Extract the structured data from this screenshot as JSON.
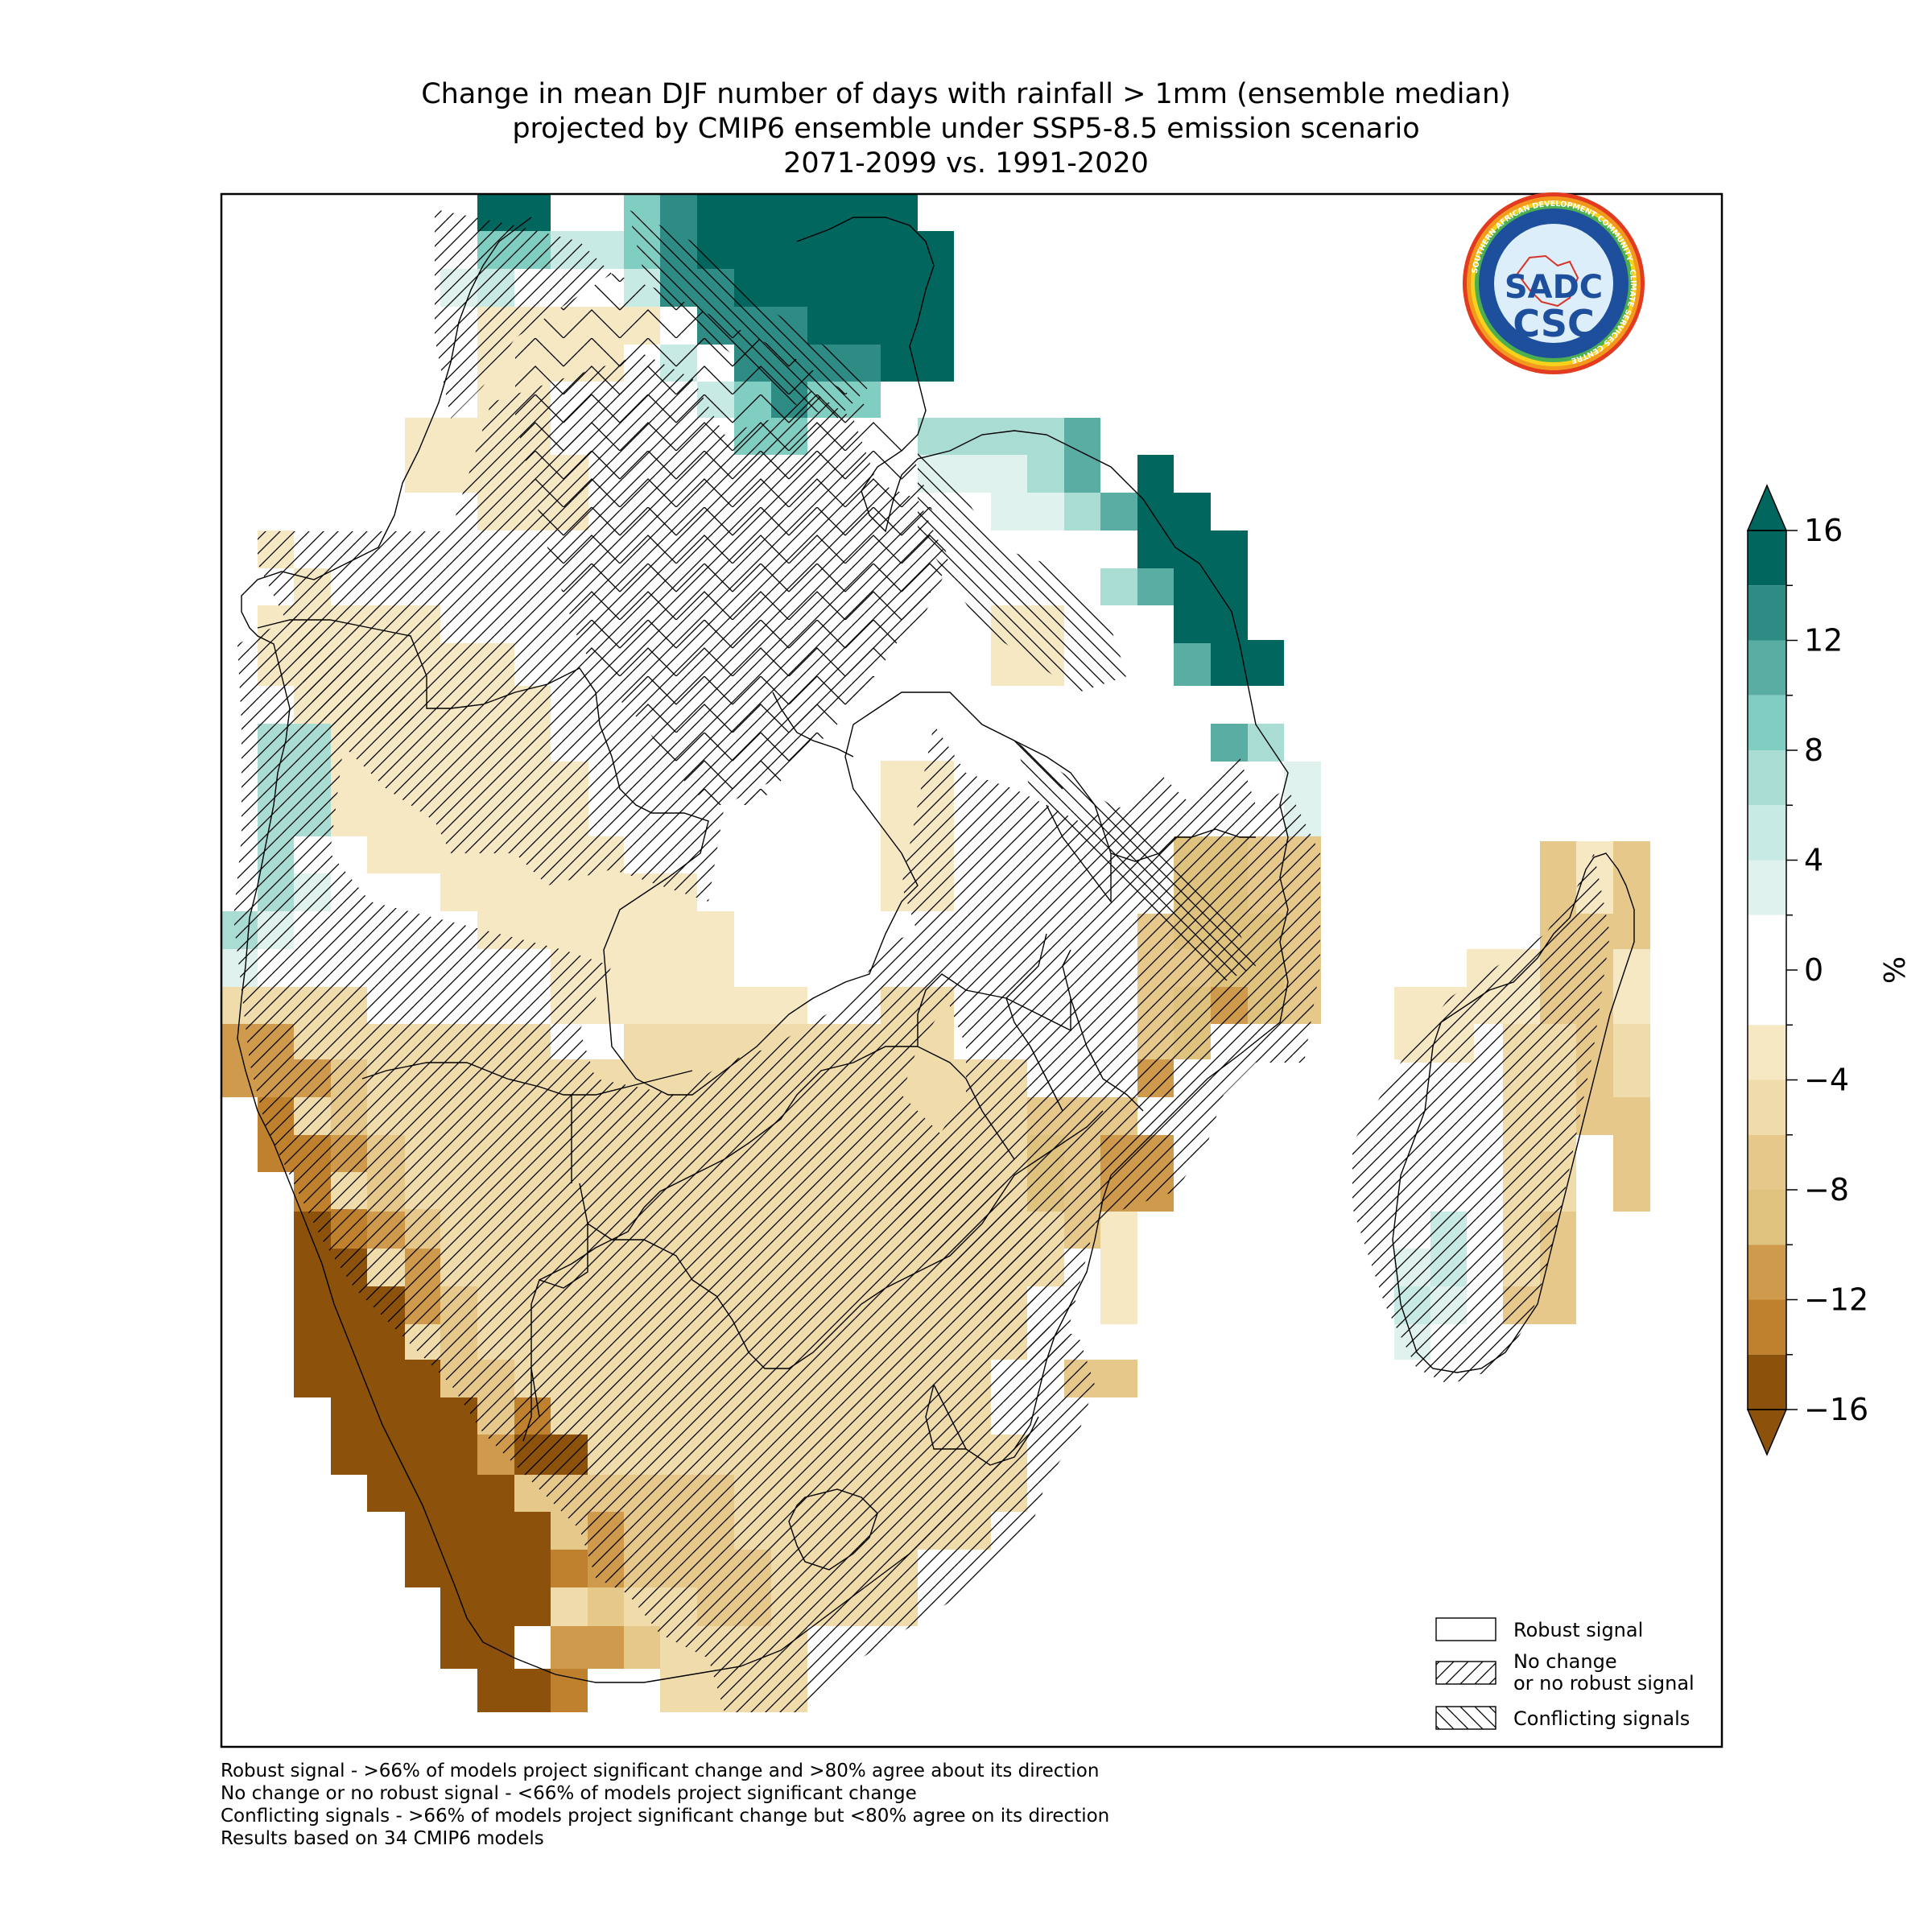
{
  "title": {
    "line1": "Change in mean DJF number of days with rainfall > 1mm (ensemble median)",
    "line2": "projected by CMIP6 ensemble under SSP5-8.5 emission scenario",
    "line3": "2071-2099 vs. 1991-2020"
  },
  "logo": {
    "text_main": "SADC",
    "text_sub": "CSC",
    "ring_text": "SOUTHERN AFRICAN DEVELOPMENT COMMUNITY · CLIMATE SERVICES CENTRE"
  },
  "colorbar": {
    "unit": "%",
    "ticks": [
      "16",
      "12",
      "8",
      "4",
      "0",
      "−4",
      "−8",
      "−12",
      "−16"
    ],
    "bins": [
      {
        "from": 14,
        "to": 16,
        "color": "#01665e"
      },
      {
        "from": 12,
        "to": 14,
        "color": "#2e8c84"
      },
      {
        "from": 10,
        "to": 12,
        "color": "#5aada3"
      },
      {
        "from": 8,
        "to": 10,
        "color": "#80cdc1"
      },
      {
        "from": 6,
        "to": 8,
        "color": "#a9dcd2"
      },
      {
        "from": 4,
        "to": 6,
        "color": "#c7eae5"
      },
      {
        "from": 2,
        "to": 4,
        "color": "#dff2ee"
      },
      {
        "from": -2,
        "to": 2,
        "color": "#ffffff"
      },
      {
        "from": -4,
        "to": -2,
        "color": "#f6e8c3"
      },
      {
        "from": -6,
        "to": -4,
        "color": "#f0dcaa"
      },
      {
        "from": -8,
        "to": -6,
        "color": "#e6c98a"
      },
      {
        "from": -10,
        "to": -8,
        "color": "#dfc27d"
      },
      {
        "from": -12,
        "to": -10,
        "color": "#cf9a4b"
      },
      {
        "from": -14,
        "to": -12,
        "color": "#bf812d"
      },
      {
        "from": -16,
        "to": -14,
        "color": "#8c510a"
      }
    ],
    "over_color": "#01665e",
    "under_color": "#8c510a"
  },
  "legend": {
    "robust": "Robust signal",
    "nochange_line1": "No change",
    "nochange_line2": "or no robust signal",
    "conflicting": "Conflicting signals"
  },
  "notes": {
    "line1": "Robust signal - >66% of models project significant change and >80% agree about its direction",
    "line2": "No change or no robust signal - <66% of models project significant change",
    "line3": "Conflicting signals - >66% of models project significant change but <80% agree on its direction",
    "line4": "Results based on 34 CMIP6 models"
  },
  "map_regions": [
    {
      "name": "north-teal",
      "value": 16
    },
    {
      "name": "north-light-teal",
      "value": 6
    },
    {
      "name": "east-coast-teal",
      "value": 14
    },
    {
      "name": "west-coast-teal",
      "value": 6
    },
    {
      "name": "interior-light-tan",
      "value": -4
    },
    {
      "name": "central-tan",
      "value": -6
    },
    {
      "name": "mozambique-tan",
      "value": -8
    },
    {
      "name": "mozambique-orange",
      "value": -11
    },
    {
      "name": "namibia-coast-brown",
      "value": -12
    },
    {
      "name": "southwest-dark-brown",
      "value": -16
    },
    {
      "name": "south-tan",
      "value": -7
    },
    {
      "name": "madagascar-east-tan",
      "value": -7
    },
    {
      "name": "madagascar-west-light-teal",
      "value": 5
    }
  ]
}
